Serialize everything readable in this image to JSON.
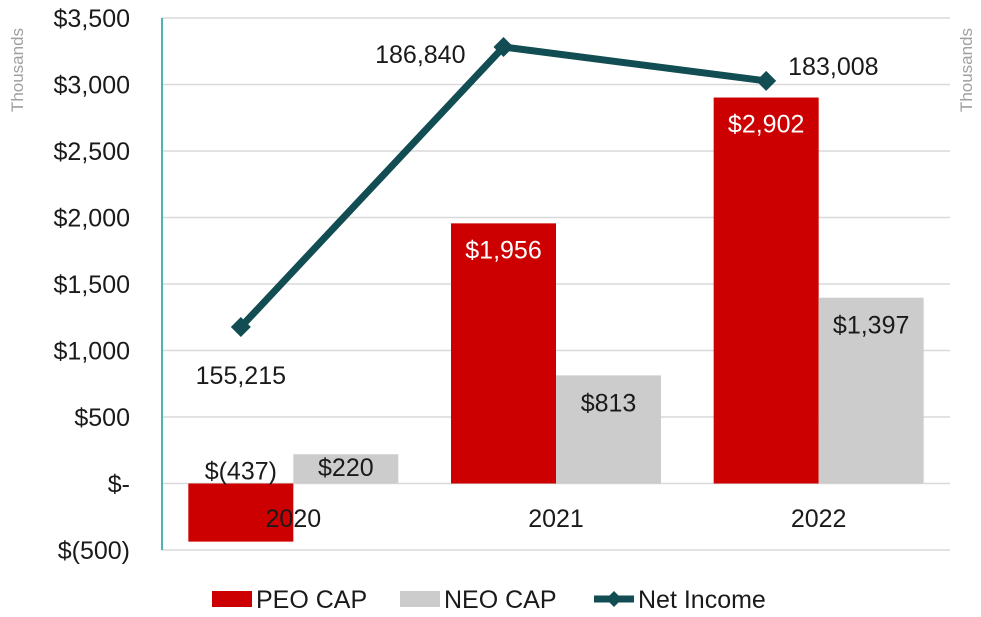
{
  "chart_data": {
    "type": "bar",
    "categories": [
      "2020",
      "2021",
      "2022"
    ],
    "series": [
      {
        "name": "PEO CAP",
        "kind": "bar",
        "axis": "left",
        "color": "#cc0000",
        "values": [
          -437,
          1956,
          2902
        ],
        "labels": [
          "$(437)",
          "$1,956",
          "$2,902"
        ]
      },
      {
        "name": "NEO CAP",
        "kind": "bar",
        "axis": "left",
        "color": "#cccccc",
        "values": [
          220,
          813,
          1397
        ],
        "labels": [
          "$220",
          "$813",
          "$1,397"
        ]
      },
      {
        "name": "Net Income",
        "kind": "line",
        "axis": "right",
        "color": "#114d52",
        "values": [
          155215,
          186840,
          183008
        ],
        "labels": [
          "155,215",
          "186,840",
          "183,008"
        ]
      }
    ],
    "ylabel_left": "Thousands",
    "ylabel_right": "Thousands",
    "ylim": [
      -500,
      3500
    ],
    "y_ticks": [
      -500,
      0,
      500,
      1000,
      1500,
      2000,
      2500,
      3000,
      3500
    ],
    "y_tick_labels": [
      "$(500)",
      "$-",
      "$500",
      "$1,000",
      "$1,500",
      "$2,000",
      "$2,500",
      "$3,000",
      "$3,500"
    ],
    "grid": true,
    "legend": "bottom"
  }
}
